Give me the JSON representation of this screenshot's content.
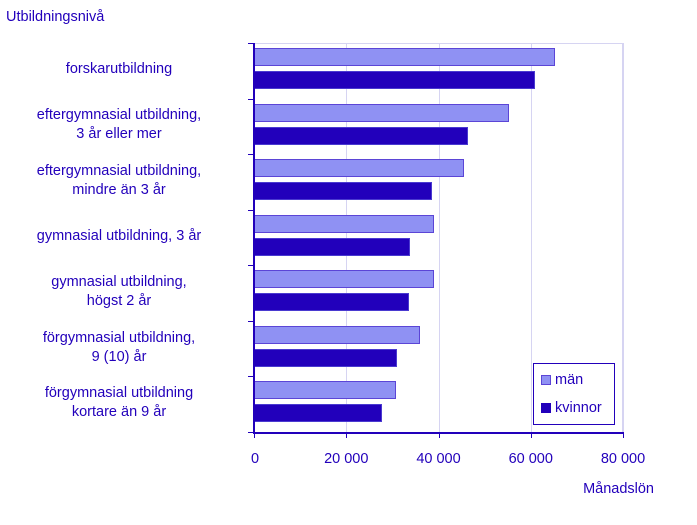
{
  "chart_data": {
    "type": "bar",
    "orientation": "horizontal",
    "title": "",
    "ylabel": "Utbildningsnivå",
    "xlabel": "Månadslön",
    "xlim": [
      0,
      80000
    ],
    "x_ticks": [
      "0",
      "20 000",
      "40 000",
      "60 000",
      "80 000"
    ],
    "grid": true,
    "legend_position": "lower right inside",
    "categories": [
      "forskarutbildning",
      "eftergymnasial utbildning, 3 år eller mer",
      "eftergymnasial utbildning, mindre än 3 år",
      "gymnasial utbildning, 3 år",
      "gymnasial utbildning, högst 2 år",
      "förgymnasial utbildning, 9 (10) år",
      "förgymnasial utbildning kortare än 9 år"
    ],
    "series": [
      {
        "name": "män",
        "color": "#8f91f3",
        "values": [
          65300,
          55300,
          45500,
          39000,
          39100,
          36000,
          30700
        ]
      },
      {
        "name": "kvinnor",
        "color": "#2200bb",
        "values": [
          60900,
          46300,
          38600,
          33800,
          33600,
          31000,
          27700
        ]
      }
    ]
  },
  "labels": {
    "ytitle": "Utbildningsnivå",
    "xtitle": "Månadslön",
    "cat_lines": [
      [
        "forskarutbildning"
      ],
      [
        "eftergymnasial utbildning,",
        "3 år eller mer"
      ],
      [
        "eftergymnasial utbildning,",
        "mindre än 3 år"
      ],
      [
        "gymnasial utbildning, 3 år"
      ],
      [
        "gymnasial utbildning,",
        "högst 2 år"
      ],
      [
        "förgymnasial utbildning,",
        "9 (10) år"
      ],
      [
        "förgymnasial utbildning",
        "kortare än 9 år"
      ]
    ],
    "legend": [
      "män",
      "kvinnor"
    ]
  },
  "colors": {
    "text": "#2200bb",
    "men": "#8f91f3",
    "women": "#2200bb",
    "grid": "#d6d4f2"
  }
}
